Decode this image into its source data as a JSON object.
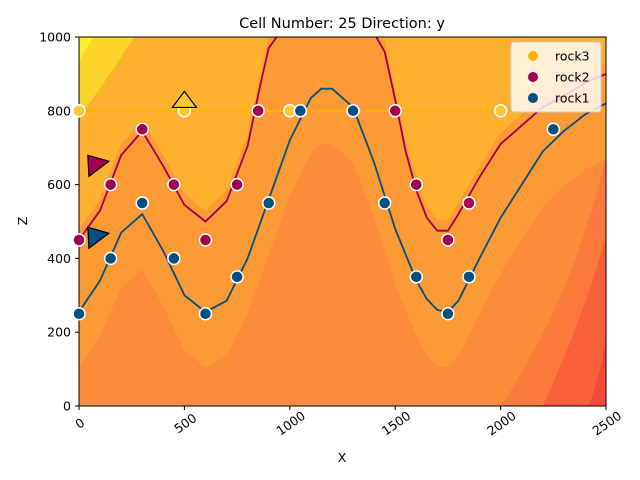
{
  "chart_data": {
    "type": "contour",
    "title": "Cell Number: 25 Direction: y",
    "xlabel": "X",
    "ylabel": "Z",
    "xlim": [
      0,
      2500
    ],
    "ylim": [
      0,
      1000
    ],
    "xticks": [
      0,
      500,
      1000,
      1500,
      2000,
      2500
    ],
    "yticks": [
      0,
      200,
      400,
      600,
      800,
      1000
    ],
    "legend_position": "top-right",
    "series": [
      {
        "name": "rock3",
        "color": "#ffb300",
        "surface_points": [
          [
            0,
            800
          ],
          [
            500,
            800
          ],
          [
            1000,
            800
          ],
          [
            2000,
            800
          ]
        ],
        "orientation_points": [
          [
            500,
            820
          ]
        ]
      },
      {
        "name": "rock2",
        "color": "#a0004f",
        "surface_points": [
          [
            0,
            450
          ],
          [
            150,
            600
          ],
          [
            300,
            750
          ],
          [
            450,
            600
          ],
          [
            600,
            450
          ],
          [
            750,
            600
          ],
          [
            850,
            800
          ],
          [
            1500,
            800
          ],
          [
            1600,
            600
          ],
          [
            1750,
            450
          ],
          [
            1850,
            550
          ]
        ],
        "orientation_points": [
          [
            80,
            655
          ]
        ]
      },
      {
        "name": "rock1",
        "color": "#005082",
        "surface_points": [
          [
            0,
            250
          ],
          [
            150,
            400
          ],
          [
            300,
            550
          ],
          [
            450,
            400
          ],
          [
            600,
            250
          ],
          [
            750,
            350
          ],
          [
            900,
            550
          ],
          [
            1050,
            800
          ],
          [
            1300,
            800
          ],
          [
            1450,
            550
          ],
          [
            1600,
            350
          ],
          [
            1750,
            250
          ],
          [
            1850,
            350
          ],
          [
            2250,
            750
          ]
        ],
        "orientation_points": [
          [
            80,
            460
          ]
        ]
      }
    ],
    "boundary_curves": [
      {
        "name": "rock2-boundary",
        "color": "#a0004f",
        "x": [
          0,
          100,
          200,
          300,
          400,
          500,
          600,
          700,
          800,
          860,
          900,
          950,
          1000,
          1100,
          1200,
          1300,
          1400,
          1450,
          1500,
          1550,
          1600,
          1650,
          1700,
          1750,
          1800,
          1900,
          2000,
          2100,
          2200,
          2300,
          2400,
          2500
        ],
        "y": [
          450,
          530,
          680,
          745,
          650,
          545,
          500,
          555,
          705,
          870,
          970,
          1010,
          1010,
          1010,
          1010,
          1010,
          1010,
          960,
          830,
          690,
          585,
          510,
          475,
          475,
          520,
          620,
          710,
          760,
          810,
          840,
          875,
          900
        ]
      },
      {
        "name": "rock1-boundary",
        "color": "#005082",
        "x": [
          0,
          100,
          200,
          300,
          400,
          500,
          600,
          700,
          800,
          900,
          1000,
          1100,
          1150,
          1200,
          1300,
          1400,
          1500,
          1600,
          1650,
          1700,
          1750,
          1800,
          1900,
          2000,
          2100,
          2200,
          2300,
          2400,
          2500
        ],
        "y": [
          255,
          340,
          470,
          520,
          420,
          300,
          255,
          285,
          400,
          560,
          720,
          835,
          860,
          860,
          810,
          660,
          480,
          340,
          290,
          260,
          255,
          285,
          400,
          510,
          600,
          690,
          745,
          790,
          820
        ]
      }
    ]
  }
}
